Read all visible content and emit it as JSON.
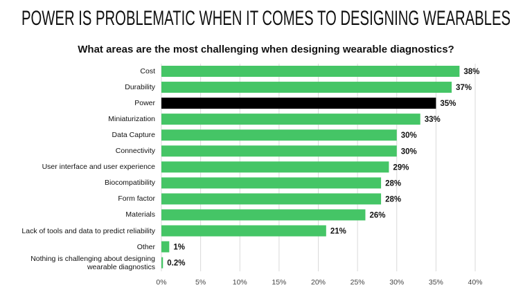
{
  "chart_data": {
    "type": "bar",
    "orientation": "horizontal",
    "title": "POWER IS PROBLEMATIC WHEN IT COMES TO DESIGNING WEARABLES",
    "subtitle": "What areas are the most challenging when designing wearable diagnostics?",
    "categories": [
      "Cost",
      "Durability",
      "Power",
      "Miniaturization",
      "Data Capture",
      "Connectivity",
      "User interface and user experience",
      "Biocompatibility",
      "Form factor",
      "Materials",
      "Lack of tools and data to predict reliability",
      "Other",
      "Nothing is challenging about designing wearable diagnostics"
    ],
    "values": [
      38,
      37,
      35,
      33,
      30,
      30,
      29,
      28,
      28,
      26,
      21,
      1,
      0.2
    ],
    "value_labels": [
      "38%",
      "37%",
      "35%",
      "33%",
      "30%",
      "30%",
      "29%",
      "28%",
      "28%",
      "26%",
      "21%",
      "1%",
      "0.2%"
    ],
    "colors": [
      "#45c566",
      "#45c566",
      "#000000",
      "#45c566",
      "#45c566",
      "#45c566",
      "#45c566",
      "#45c566",
      "#45c566",
      "#45c566",
      "#45c566",
      "#45c566",
      "#45c566"
    ],
    "xlim": [
      0,
      40
    ],
    "xticks": [
      {
        "value": 0,
        "label": "0%"
      },
      {
        "value": 5,
        "label": "5%"
      },
      {
        "value": 10,
        "label": "10%"
      },
      {
        "value": 15,
        "label": "15%"
      },
      {
        "value": 20,
        "label": "20%"
      },
      {
        "value": 25,
        "label": "25%"
      },
      {
        "value": 30,
        "label": "30%"
      },
      {
        "value": 35,
        "label": "35%"
      },
      {
        "value": 40,
        "label": "40%"
      }
    ],
    "grid": true
  }
}
